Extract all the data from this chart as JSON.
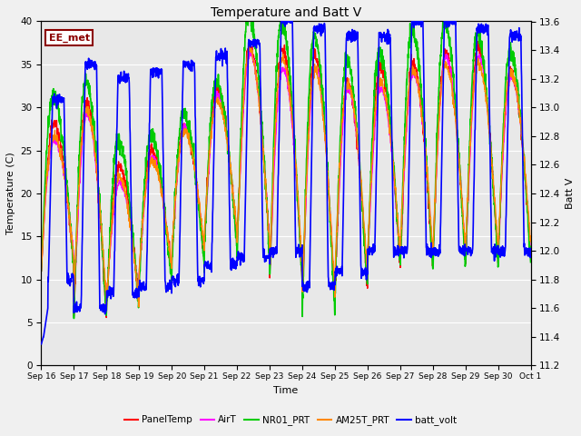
{
  "title": "Temperature and Batt V",
  "xlabel": "Time",
  "ylabel_left": "Temperature (C)",
  "ylabel_right": "Batt V",
  "annotation": "EE_met",
  "annotation_color": "#8B0000",
  "x_tick_labels": [
    "Sep 16",
    "Sep 17",
    "Sep 18",
    "Sep 19",
    "Sep 20",
    "Sep 21",
    "Sep 22",
    "Sep 23",
    "Sep 24",
    "Sep 25",
    "Sep 26",
    "Sep 27",
    "Sep 28",
    "Sep 29",
    "Sep 30",
    "Oct 1"
  ],
  "ylim_left": [
    0,
    40
  ],
  "ylim_right": [
    11.2,
    13.6
  ],
  "yticks_left": [
    0,
    5,
    10,
    15,
    20,
    25,
    30,
    35,
    40
  ],
  "yticks_right": [
    11.2,
    11.4,
    11.6,
    11.8,
    12.0,
    12.2,
    12.4,
    12.6,
    12.8,
    13.0,
    13.2,
    13.4,
    13.6
  ],
  "background_color": "#e8e8e8",
  "grid_color": "#ffffff",
  "series": {
    "PanelTemp": {
      "color": "#ff0000",
      "lw": 1.0
    },
    "AirT": {
      "color": "#ff00ff",
      "lw": 1.0
    },
    "NR01_PRT": {
      "color": "#00cc00",
      "lw": 1.2
    },
    "AM25T_PRT": {
      "color": "#ff8800",
      "lw": 1.0
    },
    "batt_volt": {
      "color": "#0000ff",
      "lw": 1.2
    }
  },
  "figsize": [
    6.4,
    4.8
  ],
  "dpi": 100
}
